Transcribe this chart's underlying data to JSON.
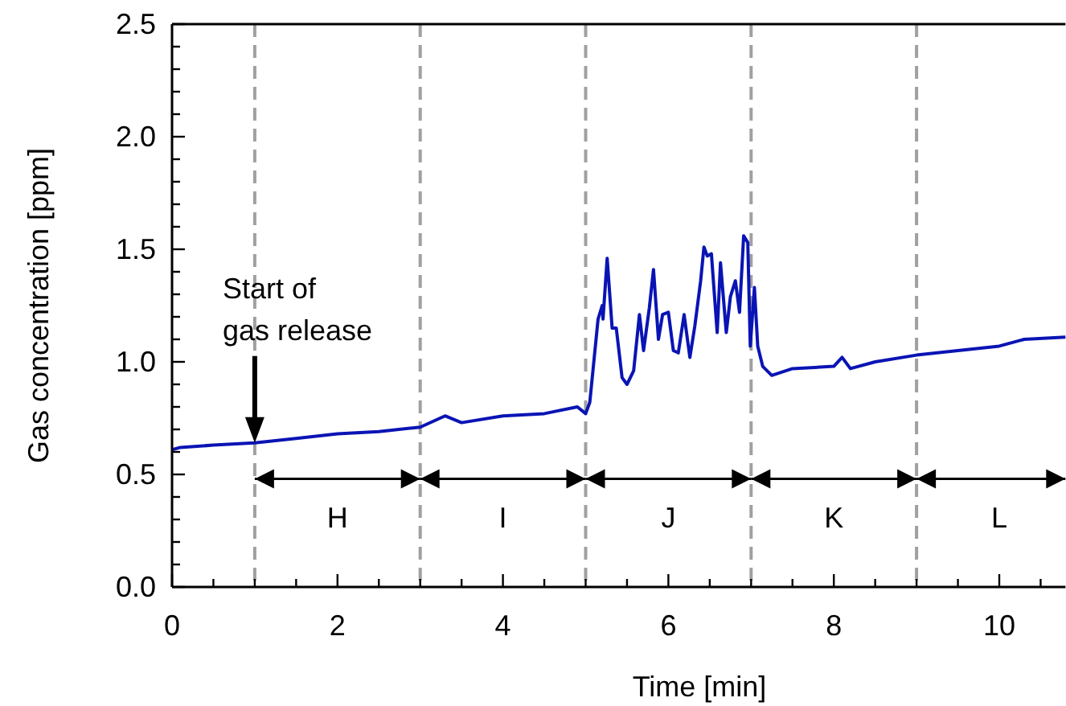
{
  "chart_data": {
    "type": "line",
    "xlabel": "Time [min]",
    "ylabel": "Gas concentration [ppm]",
    "xlim": [
      0,
      10.8
    ],
    "ylim": [
      0,
      2.5
    ],
    "xticks": [
      0,
      {
        "value": 0.5,
        "label": null
      },
      {
        "value": 1,
        "label": null
      },
      {
        "value": 1.5,
        "label": null
      },
      2,
      {
        "value": 2.5,
        "label": null
      },
      {
        "value": 3,
        "label": null
      },
      {
        "value": 3.5,
        "label": null
      },
      4,
      {
        "value": 4.5,
        "label": null
      },
      {
        "value": 5,
        "label": null
      },
      {
        "value": 5.5,
        "label": null
      },
      6,
      {
        "value": 6.5,
        "label": null
      },
      {
        "value": 7,
        "label": null
      },
      {
        "value": 7.5,
        "label": null
      },
      8,
      {
        "value": 8.5,
        "label": null
      },
      {
        "value": 9,
        "label": null
      },
      {
        "value": 9.5,
        "label": null
      },
      10,
      {
        "value": 10.5,
        "label": null
      }
    ],
    "yticks": [
      {
        "value": 0,
        "label": "0.0"
      },
      {
        "value": 0.1,
        "label": null
      },
      {
        "value": 0.2,
        "label": null
      },
      {
        "value": 0.3,
        "label": null
      },
      {
        "value": 0.4,
        "label": null
      },
      0.5,
      {
        "value": 0.6,
        "label": null
      },
      {
        "value": 0.7,
        "label": null
      },
      {
        "value": 0.8,
        "label": null
      },
      {
        "value": 0.9,
        "label": null
      },
      {
        "value": 1,
        "label": "1.0"
      },
      {
        "value": 1.1,
        "label": null
      },
      {
        "value": 1.2,
        "label": null
      },
      {
        "value": 1.3,
        "label": null
      },
      {
        "value": 1.4,
        "label": null
      },
      1.5,
      {
        "value": 1.6,
        "label": null
      },
      {
        "value": 1.7,
        "label": null
      },
      {
        "value": 1.8,
        "label": null
      },
      {
        "value": 1.9,
        "label": null
      },
      {
        "value": 2,
        "label": "2.0"
      },
      {
        "value": 2.1,
        "label": null
      },
      {
        "value": 2.2,
        "label": null
      },
      {
        "value": 2.3,
        "label": null
      },
      {
        "value": 2.4,
        "label": null
      },
      2.5
    ],
    "grid": false,
    "marker": "none",
    "line_style": "solid",
    "series": [
      {
        "color": "#0a14b4",
        "x": [
          0,
          0.1,
          0.5,
          1,
          1.5,
          2,
          2.5,
          3,
          3.3,
          3.5,
          4,
          4.5,
          4.9,
          5,
          5.05,
          5.15,
          5.2,
          5.21,
          5.26,
          5.32,
          5.37,
          5.44,
          5.5,
          5.58,
          5.65,
          5.7,
          5.77,
          5.82,
          5.88,
          5.93,
          6,
          6.06,
          6.12,
          6.19,
          6.26,
          6.32,
          6.39,
          6.43,
          6.47,
          6.52,
          6.59,
          6.63,
          6.7,
          6.75,
          6.81,
          6.86,
          6.91,
          6.96,
          6.99,
          7.04,
          7.08,
          7.14,
          7.25,
          7.5,
          8,
          8.1,
          8.2,
          8.5,
          9,
          9.5,
          10,
          10.3,
          10.8
        ],
        "values": [
          0.61,
          0.62,
          0.63,
          0.64,
          0.66,
          0.68,
          0.69,
          0.71,
          0.76,
          0.73,
          0.76,
          0.77,
          0.8,
          0.77,
          0.82,
          1.19,
          1.25,
          1.19,
          1.46,
          1.15,
          1.15,
          0.93,
          0.9,
          0.96,
          1.21,
          1.05,
          1.24,
          1.41,
          1.1,
          1.21,
          1.22,
          1.05,
          1.04,
          1.21,
          1.02,
          1.16,
          1.36,
          1.51,
          1.47,
          1.48,
          1.13,
          1.44,
          1.13,
          1.29,
          1.36,
          1.22,
          1.56,
          1.53,
          1.07,
          1.33,
          1.07,
          0.98,
          0.94,
          0.97,
          0.98,
          1.02,
          0.97,
          1,
          1.03,
          1.05,
          1.07,
          1.1,
          1.11
        ]
      }
    ],
    "ref_lines": [
      {
        "axis": "x",
        "value": 1,
        "color": "#a0a0a0",
        "line_style": "dashed"
      },
      {
        "axis": "x",
        "value": 3,
        "color": "#a0a0a0",
        "line_style": "dashed"
      },
      {
        "axis": "x",
        "value": 5,
        "color": "#a0a0a0",
        "line_style": "dashed"
      },
      {
        "axis": "x",
        "value": 7,
        "color": "#a0a0a0",
        "line_style": "dashed"
      },
      {
        "axis": "x",
        "value": 9,
        "color": "#a0a0a0",
        "line_style": "dashed"
      }
    ],
    "annotations": [
      "Start of\ngas release",
      "H",
      "I",
      "J",
      "K",
      "L"
    ]
  }
}
